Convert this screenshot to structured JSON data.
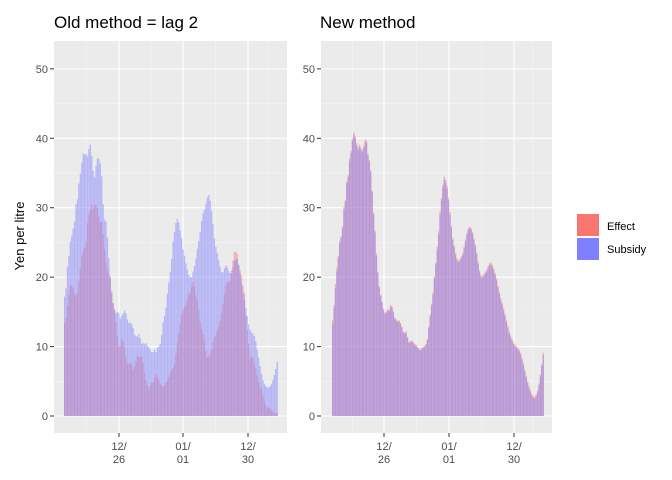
{
  "figure": {
    "ylabel": "Yen per litre",
    "legend": {
      "placement": "right",
      "entries": [
        {
          "name": "Effect",
          "color": "#F8766D"
        },
        {
          "name": "Subsidy",
          "color": "#7F7FFF"
        }
      ]
    }
  },
  "chart_data": [
    {
      "type": "bar",
      "title": "Old method = lag 2",
      "xlabel": "",
      "ylabel": "Yen per litre",
      "ylim": [
        0,
        52
      ],
      "y_ticks": [
        0,
        10,
        20,
        30,
        40,
        50
      ],
      "x_tick_labels": [
        [
          "12/",
          "26"
        ],
        [
          "01/",
          "01"
        ],
        [
          "12/",
          "30"
        ]
      ],
      "bar_count": 150,
      "grid": true,
      "overlay_alpha": 0.5,
      "series": [
        {
          "name": "Effect",
          "color": "#F8766D",
          "values": [
            13.4,
            14.1,
            15.9,
            17.5,
            18.9,
            18.7,
            18.4,
            17.5,
            17.4,
            17.8,
            19.5,
            21.2,
            23.0,
            23.7,
            24.2,
            25.1,
            27.8,
            29.1,
            29.7,
            30.5,
            29.8,
            30.4,
            30.4,
            30.0,
            28.7,
            27.9,
            28.0,
            26.2,
            24.0,
            22.1,
            20.9,
            20.4,
            19.9,
            18.0,
            16.3,
            15.3,
            13.6,
            11.4,
            10.0,
            10.1,
            11.2,
            10.8,
            9.9,
            8.5,
            7.6,
            7.5,
            7.6,
            7.4,
            6.7,
            7.1,
            7.9,
            8.7,
            8.5,
            8.5,
            8.6,
            7.6,
            6.2,
            5.2,
            4.4,
            3.8,
            4.4,
            4.8,
            4.9,
            5.5,
            6.0,
            5.6,
            5.3,
            4.6,
            4.4,
            4.2,
            4.4,
            4.8,
            5.1,
            5.6,
            6.2,
            6.7,
            6.9,
            7.5,
            8.9,
            10.5,
            11.9,
            13.3,
            14.6,
            15.3,
            15.7,
            16.0,
            16.8,
            17.5,
            17.8,
            18.6,
            19.3,
            18.7,
            17.4,
            16.7,
            15.3,
            13.6,
            12.6,
            11.8,
            10.8,
            9.4,
            8.4,
            8.6,
            9.0,
            9.6,
            10.7,
            11.4,
            11.6,
            12.3,
            12.9,
            13.7,
            14.8,
            16.1,
            17.5,
            18.8,
            19.3,
            19.3,
            19.5,
            21.0,
            22.4,
            23.6,
            23.7,
            23.4,
            21.7,
            21.0,
            20.2,
            18.7,
            17.6,
            14.5,
            12.4,
            10.4,
            8.3,
            8.5,
            8.5,
            7.5,
            6.8,
            5.8,
            5.0,
            4.2,
            3.8,
            3.0,
            2.2,
            1.6,
            1.1,
            1.3,
            1.1,
            0.8,
            0.7,
            0.4,
            0.4,
            0.4
          ]
        },
        {
          "name": "Subsidy",
          "color": "#7F7FFF",
          "values": [
            17.2,
            18.4,
            21.5,
            23.1,
            25.1,
            26.0,
            27.0,
            28.0,
            30.5,
            31.2,
            33.5,
            34.9,
            36.5,
            37.8,
            37.6,
            37.8,
            37.4,
            38.5,
            39.1,
            37.5,
            35.3,
            34.4,
            36.0,
            37.1,
            37.1,
            36.4,
            34.5,
            30.5,
            28.3,
            28.0,
            25.7,
            22.7,
            20.1,
            17.7,
            16.2,
            15.3,
            14.8,
            15.0,
            14.8,
            14.0,
            14.4,
            14.7,
            15.2,
            14.8,
            13.9,
            13.4,
            13.5,
            13.2,
            12.7,
            11.7,
            11.5,
            11.4,
            11.8,
            11.2,
            10.4,
            10.5,
            10.3,
            10.5,
            10.1,
            9.9,
            9.6,
            9.2,
            9.2,
            9.6,
            9.2,
            9.8,
            10.0,
            10.4,
            11.7,
            13.5,
            14.4,
            15.6,
            17.6,
            19.2,
            20.8,
            22.6,
            25.2,
            26.5,
            27.8,
            28.4,
            27.9,
            26.7,
            25.6,
            24.0,
            23.1,
            22.0,
            21.1,
            20.3,
            20.0,
            20.0,
            20.8,
            21.6,
            22.7,
            24.1,
            25.2,
            26.5,
            28.1,
            29.2,
            29.7,
            30.6,
            31.5,
            31.8,
            31.0,
            29.5,
            27.6,
            25.6,
            24.4,
            23.5,
            22.5,
            21.5,
            20.7,
            20.7,
            21.3,
            21.7,
            21.4,
            20.9,
            20.6,
            20.6,
            21.4,
            22.3,
            22.6,
            22.6,
            21.8,
            20.5,
            19.1,
            17.8,
            16.7,
            15.6,
            14.4,
            13.2,
            12.4,
            12.0,
            11.9,
            11.5,
            10.8,
            9.6,
            8.4,
            7.2,
            6.1,
            5.2,
            4.6,
            4.3,
            4.1,
            4.1,
            4.3,
            4.6,
            5.2,
            5.9,
            6.8,
            7.8
          ]
        }
      ]
    },
    {
      "type": "bar",
      "title": "New method",
      "xlabel": "",
      "ylabel": "",
      "ylim": [
        0,
        52
      ],
      "y_ticks": [
        0,
        10,
        20,
        30,
        40,
        50
      ],
      "x_tick_labels": [
        [
          "12/",
          "26"
        ],
        [
          "01/",
          "01"
        ],
        [
          "12/",
          "30"
        ]
      ],
      "bar_count": 150,
      "grid": true,
      "overlay_alpha": 0.5,
      "series": [
        {
          "name": "Effect",
          "color": "#F8766D",
          "values": [
            13.8,
            16.0,
            19.0,
            21.4,
            23.1,
            25.2,
            25.9,
            27.3,
            30.1,
            31.1,
            33.8,
            34.7,
            37.1,
            38.2,
            40.0,
            40.9,
            40.3,
            39.3,
            38.6,
            39.1,
            38.7,
            38.3,
            38.9,
            39.8,
            39.7,
            37.8,
            36.9,
            35.4,
            32.5,
            29.3,
            26.7,
            23.4,
            20.8,
            18.7,
            17.5,
            16.5,
            15.5,
            14.9,
            15.1,
            15.4,
            15.3,
            16.0,
            15.8,
            15.1,
            14.2,
            13.9,
            13.7,
            13.8,
            13.4,
            12.9,
            12.2,
            12.0,
            12.2,
            11.4,
            10.7,
            10.8,
            10.9,
            10.7,
            10.4,
            10.3,
            10.0,
            9.8,
            9.6,
            9.8,
            10.0,
            10.1,
            10.4,
            11.1,
            12.9,
            14.6,
            16.2,
            17.8,
            20.1,
            22.1,
            24.4,
            26.6,
            29.4,
            31.4,
            33.3,
            34.5,
            34.0,
            33.1,
            31.5,
            29.4,
            27.4,
            25.7,
            24.6,
            23.5,
            22.7,
            22.4,
            22.6,
            23.0,
            23.5,
            24.4,
            25.4,
            26.4,
            27.1,
            27.3,
            27.1,
            26.5,
            25.6,
            24.7,
            23.6,
            22.2,
            21.0,
            20.3,
            20.2,
            20.5,
            20.8,
            21.1,
            21.6,
            22.0,
            22.1,
            21.8,
            21.3,
            20.6,
            19.8,
            18.8,
            17.9,
            17.0,
            16.3,
            15.5,
            14.7,
            13.8,
            13.0,
            12.2,
            11.6,
            11.1,
            10.6,
            10.3,
            10.1,
            9.9,
            9.6,
            9.1,
            8.4,
            7.6,
            6.7,
            5.8,
            5.0,
            4.3,
            3.7,
            3.2,
            2.9,
            2.8,
            3.1,
            3.7,
            4.7,
            6.0,
            7.5,
            9.1
          ]
        },
        {
          "name": "Subsidy",
          "color": "#7F7FFF",
          "values": [
            13.2,
            15.6,
            18.4,
            20.8,
            22.8,
            24.9,
            25.7,
            27.1,
            29.7,
            30.9,
            33.5,
            34.4,
            36.7,
            37.9,
            39.6,
            40.5,
            40.0,
            39.0,
            38.3,
            38.8,
            38.4,
            38.0,
            38.6,
            39.4,
            39.4,
            37.5,
            36.6,
            35.1,
            32.2,
            29.0,
            26.4,
            23.1,
            20.6,
            18.5,
            17.3,
            16.3,
            15.3,
            14.7,
            14.9,
            15.2,
            15.1,
            15.8,
            15.6,
            14.9,
            14.0,
            13.7,
            13.5,
            13.6,
            13.2,
            12.7,
            12.0,
            11.8,
            12.0,
            11.2,
            10.5,
            10.6,
            10.7,
            10.5,
            10.2,
            10.1,
            9.8,
            9.6,
            9.4,
            9.6,
            9.8,
            9.9,
            10.2,
            10.9,
            12.6,
            14.3,
            15.9,
            17.5,
            19.8,
            21.8,
            24.0,
            26.2,
            29.0,
            31.0,
            32.9,
            34.1,
            33.6,
            32.7,
            31.1,
            29.0,
            27.1,
            25.4,
            24.3,
            23.2,
            22.4,
            22.1,
            22.3,
            22.7,
            23.2,
            24.1,
            25.1,
            26.1,
            26.8,
            27.0,
            26.8,
            26.2,
            25.3,
            24.4,
            23.3,
            21.9,
            20.7,
            20.0,
            19.9,
            20.2,
            20.5,
            20.8,
            21.3,
            21.7,
            21.8,
            21.5,
            21.0,
            20.3,
            19.5,
            18.5,
            17.6,
            16.7,
            16.0,
            15.2,
            14.4,
            13.5,
            12.7,
            11.9,
            11.3,
            10.8,
            10.3,
            10.0,
            9.8,
            9.6,
            9.3,
            8.8,
            8.1,
            7.3,
            6.4,
            5.5,
            4.7,
            4.0,
            3.4,
            2.9,
            2.6,
            2.5,
            2.8,
            3.4,
            4.4,
            5.7,
            7.2,
            8.8
          ]
        }
      ]
    }
  ]
}
